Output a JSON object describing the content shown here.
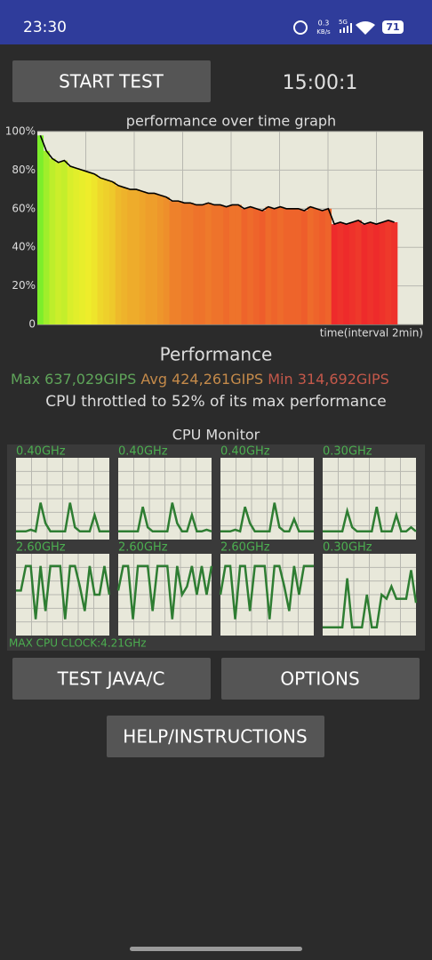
{
  "status_bar": {
    "time": "23:30",
    "speed": "0.3",
    "speed_unit": "KB/s",
    "network": "5G",
    "battery": "71"
  },
  "buttons": {
    "start_test": "START TEST",
    "test_java": "TEST JAVA/C",
    "options": "OPTIONS",
    "help": "HELP/INSTRUCTIONS"
  },
  "timer": "15:00:1",
  "chart_data": {
    "type": "bar",
    "title": "performance over time graph",
    "x_label": "time(interval 2min)",
    "ylim": [
      0,
      100
    ],
    "yticks": [
      0,
      {
        "value": 20,
        "label": "20%"
      },
      {
        "value": 40,
        "label": "40%"
      },
      {
        "value": 60,
        "label": "60%"
      },
      {
        "value": 80,
        "label": "80%"
      },
      {
        "value": 100,
        "label": "100%"
      }
    ],
    "grid": true,
    "line_color": "#000000",
    "values": [
      98,
      90,
      86,
      84,
      85,
      82,
      81,
      80,
      79,
      78,
      76,
      75,
      74,
      72,
      71,
      70,
      70,
      69,
      68,
      68,
      67,
      66,
      64,
      64,
      63,
      63,
      62,
      62,
      63,
      62,
      62,
      61,
      62,
      62,
      60,
      61,
      60,
      59,
      61,
      60,
      61,
      60,
      60,
      60,
      59,
      61,
      60,
      59,
      60,
      52,
      53,
      52,
      53,
      54,
      52,
      53,
      52,
      53,
      54,
      53
    ]
  },
  "performance": {
    "heading": "Performance",
    "max": "Max 637,029GIPS",
    "avg": "Avg 424,261GIPS",
    "min": "Min 314,692GIPS",
    "throttle": "CPU throttled to 52% of its max performance"
  },
  "cpu_monitor": {
    "title": "CPU Monitor",
    "max_clock": "MAX CPU CLOCK:4.21GHz",
    "line_color": "#2e7d32",
    "cores": [
      {
        "freq": "0.40GHz",
        "values": [
          10,
          10,
          10,
          12,
          10,
          45,
          20,
          10,
          10,
          10,
          10,
          45,
          15,
          10,
          10,
          10,
          30,
          10,
          10,
          10
        ]
      },
      {
        "freq": "0.40GHz",
        "values": [
          10,
          10,
          10,
          10,
          10,
          40,
          15,
          10,
          10,
          10,
          10,
          45,
          20,
          10,
          10,
          30,
          10,
          10,
          12,
          10
        ]
      },
      {
        "freq": "0.40GHz",
        "values": [
          10,
          10,
          10,
          12,
          10,
          40,
          20,
          10,
          10,
          10,
          10,
          45,
          15,
          10,
          10,
          25,
          10,
          10,
          10,
          10
        ]
      },
      {
        "freq": "0.30GHz",
        "values": [
          10,
          10,
          10,
          10,
          10,
          35,
          15,
          10,
          10,
          10,
          10,
          40,
          10,
          10,
          10,
          30,
          10,
          10,
          15,
          10
        ]
      },
      {
        "freq": "2.60GHz",
        "values": [
          55,
          55,
          85,
          85,
          20,
          85,
          30,
          85,
          85,
          85,
          20,
          85,
          85,
          60,
          30,
          85,
          50,
          50,
          85,
          50
        ]
      },
      {
        "freq": "2.60GHz",
        "values": [
          55,
          85,
          85,
          20,
          85,
          85,
          85,
          30,
          85,
          85,
          85,
          20,
          85,
          50,
          60,
          85,
          50,
          85,
          50,
          85
        ]
      },
      {
        "freq": "2.60GHz",
        "values": [
          50,
          85,
          85,
          20,
          85,
          85,
          30,
          85,
          85,
          85,
          20,
          85,
          85,
          60,
          30,
          85,
          50,
          85,
          85,
          85
        ]
      },
      {
        "freq": "0.30GHz",
        "values": [
          10,
          10,
          10,
          10,
          10,
          70,
          10,
          10,
          10,
          50,
          10,
          10,
          50,
          45,
          60,
          45,
          45,
          45,
          80,
          40
        ]
      }
    ]
  }
}
